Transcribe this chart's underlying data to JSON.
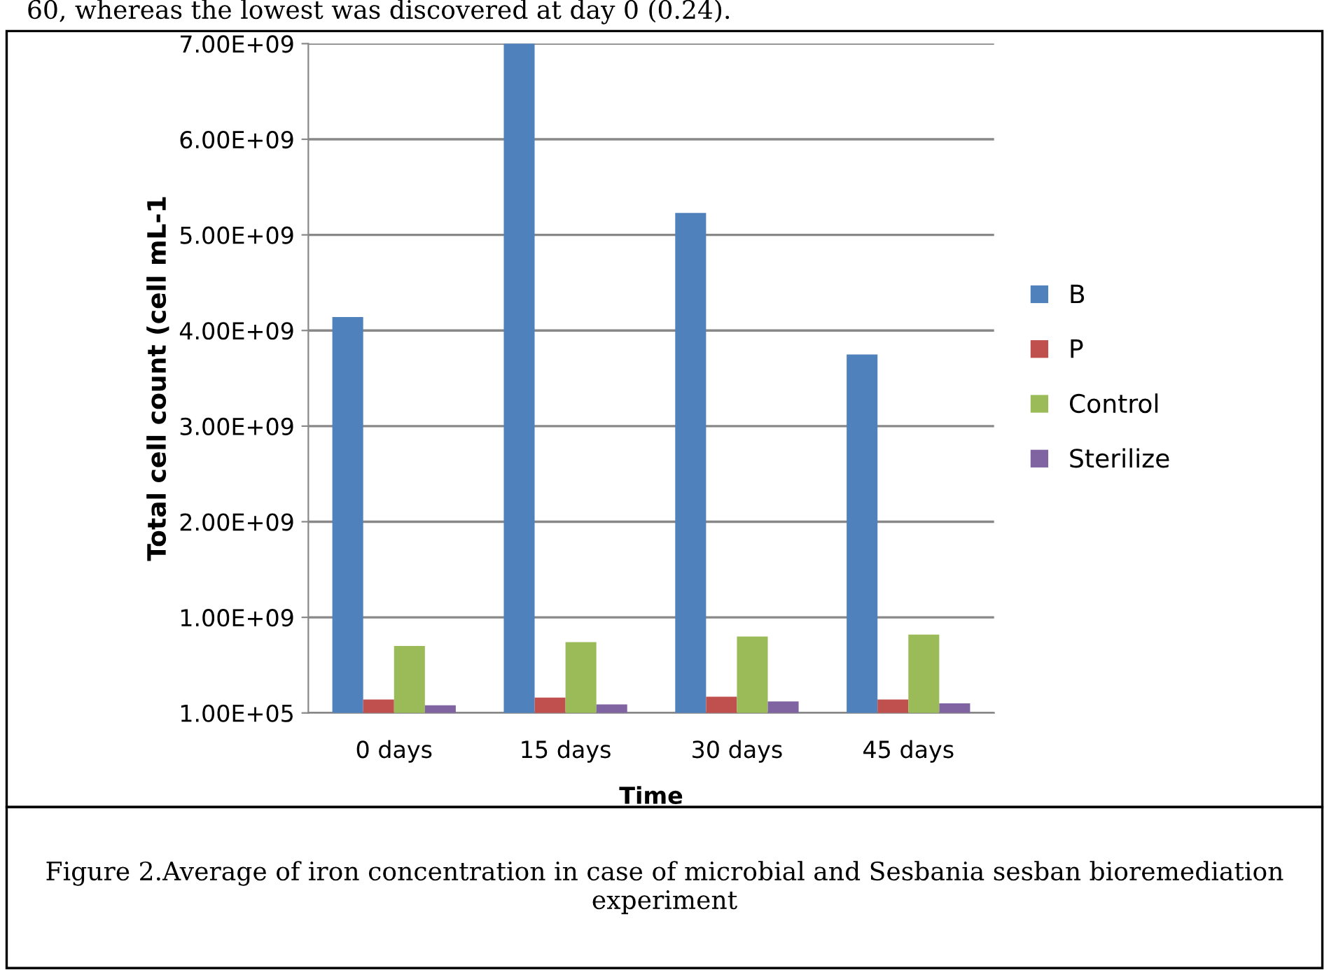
{
  "chart_data": {
    "type": "bar",
    "xlabel": "Time",
    "ylabel": "Total cell count (cell mL-1",
    "categories": [
      "0 days",
      "15 days",
      "30 days",
      "45 days"
    ],
    "series": [
      {
        "name": "B",
        "color": "#4f81bd",
        "values": [
          4140000000.0,
          7000000000.0,
          5230000000.0,
          3750000000.0
        ]
      },
      {
        "name": "P",
        "color": "#c0504d",
        "values": [
          140000000.0,
          160000000.0,
          170000000.0,
          140000000.0
        ]
      },
      {
        "name": "Control",
        "color": "#9bbb59",
        "values": [
          700000000.0,
          740000000.0,
          800000000.0,
          820000000.0
        ]
      },
      {
        "name": "Sterilize",
        "color": "#8064a2",
        "values": [
          80000000.0,
          90000000.0,
          120000000.0,
          100000000.0
        ]
      }
    ],
    "ylim": [
      100000,
      7000000000
    ],
    "yticks": [
      {
        "value": 100000,
        "label": "1.00E+05"
      },
      {
        "value": 1000000000,
        "label": "1.00E+09"
      },
      {
        "value": 2000000000,
        "label": "2.00E+09"
      },
      {
        "value": 3000000000,
        "label": "3.00E+09"
      },
      {
        "value": 4000000000,
        "label": "4.00E+09"
      },
      {
        "value": 5000000000,
        "label": "5.00E+09"
      },
      {
        "value": 6000000000,
        "label": "6.00E+09"
      },
      {
        "value": 7000000000,
        "label": "7.00E+09"
      }
    ],
    "grid": "y",
    "legend": "right",
    "annotations": [
      "60, whereas the lowest was discovered at day 0 (0.24).",
      "Figure 2.Average of iron concentration in case of microbial and Sesbania sesban bioremediation experiment"
    ]
  }
}
